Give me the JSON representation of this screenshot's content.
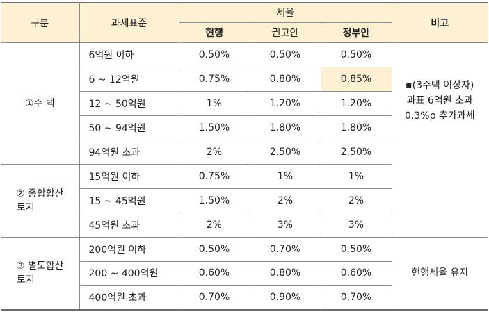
{
  "header": {
    "category": "구분",
    "standard": "과세표준",
    "rate_group": "세율",
    "current": "현행",
    "recommended": "권고안",
    "government": "정부안",
    "note": "비고"
  },
  "groups": [
    {
      "name_line1": "①주 택",
      "name_line2": "",
      "note": [
        "▪(3주택 이상자)",
        "과표 6억원 초과",
        "0.3%p 추가과세"
      ],
      "rows": [
        {
          "standard": "6억원 이하",
          "current": "0.50%",
          "recommended": "0.50%",
          "government": "0.50%"
        },
        {
          "standard": "6  ~  12억원",
          "current": "0.75%",
          "recommended": "0.80%",
          "government": "0.85%"
        },
        {
          "standard": "12 ~ 50억원",
          "current": "1%",
          "recommended": "1.20%",
          "government": "1.20%"
        },
        {
          "standard": "50 ~ 94억원",
          "current": "1.50%",
          "recommended": "1.80%",
          "government": "1.80%"
        },
        {
          "standard": "94억원 초과",
          "current": "2%",
          "recommended": "2.50%",
          "government": "2.50%"
        }
      ]
    },
    {
      "name_line1": "② 종합합산",
      "name_line2": "토지",
      "rows": [
        {
          "standard": "15억원 이하",
          "current": "0.75%",
          "recommended": "1%",
          "government": "1%"
        },
        {
          "standard": "15  ~  45억원",
          "current": "1.50%",
          "recommended": "2%",
          "government": "2%"
        },
        {
          "standard": "45억원 초과",
          "current": "2%",
          "recommended": "3%",
          "government": "3%"
        }
      ]
    },
    {
      "name_line1": "③ 별도합산",
      "name_line2": "토지",
      "note": [
        "현행세율 유지"
      ],
      "rows": [
        {
          "standard": "200억원 이하",
          "current": "0.50%",
          "recommended": "0.70%",
          "government": "0.50%"
        },
        {
          "standard": "200 ~ 400억원",
          "current": "0.60%",
          "recommended": "0.80%",
          "government": "0.60%"
        },
        {
          "standard": "400억원 초과",
          "current": "0.70%",
          "recommended": "0.90%",
          "government": "0.70%"
        }
      ]
    }
  ],
  "colors": {
    "header_fill": "#fdf0d3",
    "highlight_fill": "#fdf0d3",
    "border": "#8c8c8c"
  }
}
